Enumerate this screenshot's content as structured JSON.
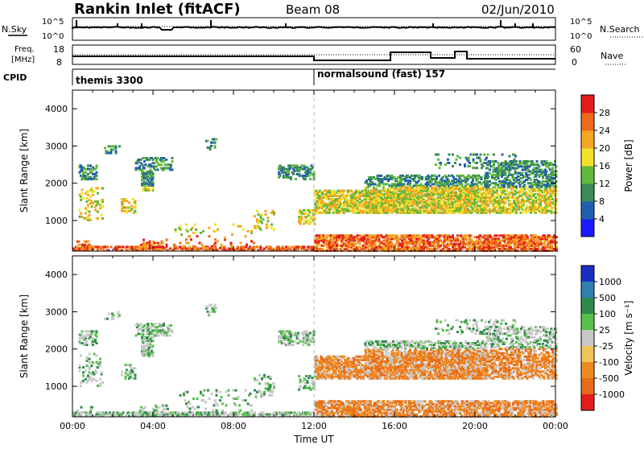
{
  "header": {
    "station": "Rankin Inlet (fitACF)",
    "beam": "Beam 08",
    "date": "02/Jun/2010"
  },
  "strip_labels": {
    "nsky": "N.Sky",
    "nsky_top": "10^5",
    "nsky_bottom": "10^0",
    "freq_line1": "Freq.",
    "freq_line2": "[MHz]",
    "freq_top": "18",
    "freq_bottom": "8",
    "nsearch": "N.Search",
    "nsearch_top": "10^5",
    "nsearch_bottom": "10^0",
    "nave": "Nave",
    "nave_top": "60",
    "nave_bottom": "0",
    "cpid": "CPID"
  },
  "cpid_segments": [
    "themis 3300",
    "normalsound (fast) 157"
  ],
  "chart_data": [
    {
      "type": "heatmap",
      "name": "power-panel",
      "ylabel": "Slant Range [km]",
      "ylim": [
        180,
        4500
      ],
      "yticks": [
        "1000",
        "2000",
        "3000",
        "4000"
      ],
      "xlim": [
        0,
        24
      ],
      "colorbar": {
        "label": "Power [dB]",
        "ticks": [
          "4",
          "8",
          "12",
          "16",
          "20",
          "24",
          "28"
        ],
        "colors": [
          "#1a1aff",
          "#1f5fb0",
          "#3c8a5a",
          "#62b83a",
          "#f2e02a",
          "#f5a623",
          "#ee6a1b",
          "#e51c1c"
        ]
      }
    },
    {
      "type": "heatmap",
      "name": "velocity-panel",
      "ylabel": "Slant Range [km]",
      "ylim": [
        180,
        4500
      ],
      "yticks": [
        "1000",
        "2000",
        "3000",
        "4000"
      ],
      "xlim": [
        0,
        24
      ],
      "xticks": [
        "00:00",
        "04:00",
        "08:00",
        "12:00",
        "16:00",
        "20:00",
        "00:00"
      ],
      "xlabel": "Time UT",
      "colorbar": {
        "label": "Velocity [m s⁻¹]",
        "ticks": [
          "1000",
          "500",
          "100",
          "25",
          "-25",
          "-100",
          "-500",
          "-1000"
        ],
        "colors": [
          "#1a2fc0",
          "#2f7fb0",
          "#2f8a4a",
          "#59c04a",
          "#c8c8c8",
          "#f0c45a",
          "#ee8a22",
          "#e86a1a",
          "#e51c1c"
        ]
      }
    }
  ]
}
